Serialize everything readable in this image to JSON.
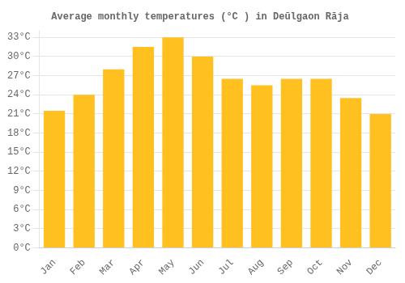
{
  "chart_data": {
    "type": "bar",
    "title": "Average monthly temperatures (°C ) in Deūlgaon Rāja",
    "categories": [
      "Jan",
      "Feb",
      "Mar",
      "Apr",
      "May",
      "Jun",
      "Jul",
      "Aug",
      "Sep",
      "Oct",
      "Nov",
      "Dec"
    ],
    "values": [
      21.5,
      24.0,
      28.0,
      31.5,
      33.0,
      30.0,
      26.5,
      25.5,
      26.5,
      26.5,
      23.5,
      21.0
    ],
    "color": "#FFC020",
    "ylim": [
      0,
      34
    ],
    "yticks": [
      {
        "value": 0,
        "label": "0°C"
      },
      {
        "value": 3,
        "label": "3°C"
      },
      {
        "value": 6,
        "label": "6°C"
      },
      {
        "value": 9,
        "label": "9°C"
      },
      {
        "value": 12,
        "label": "12°C"
      },
      {
        "value": 15,
        "label": "15°C"
      },
      {
        "value": 18,
        "label": "18°C"
      },
      {
        "value": 21,
        "label": "21°C"
      },
      {
        "value": 24,
        "label": "24°C"
      },
      {
        "value": 27,
        "label": "27°C"
      },
      {
        "value": 30,
        "label": "30°C"
      },
      {
        "value": 33,
        "label": "33°C"
      }
    ],
    "grid": true
  }
}
